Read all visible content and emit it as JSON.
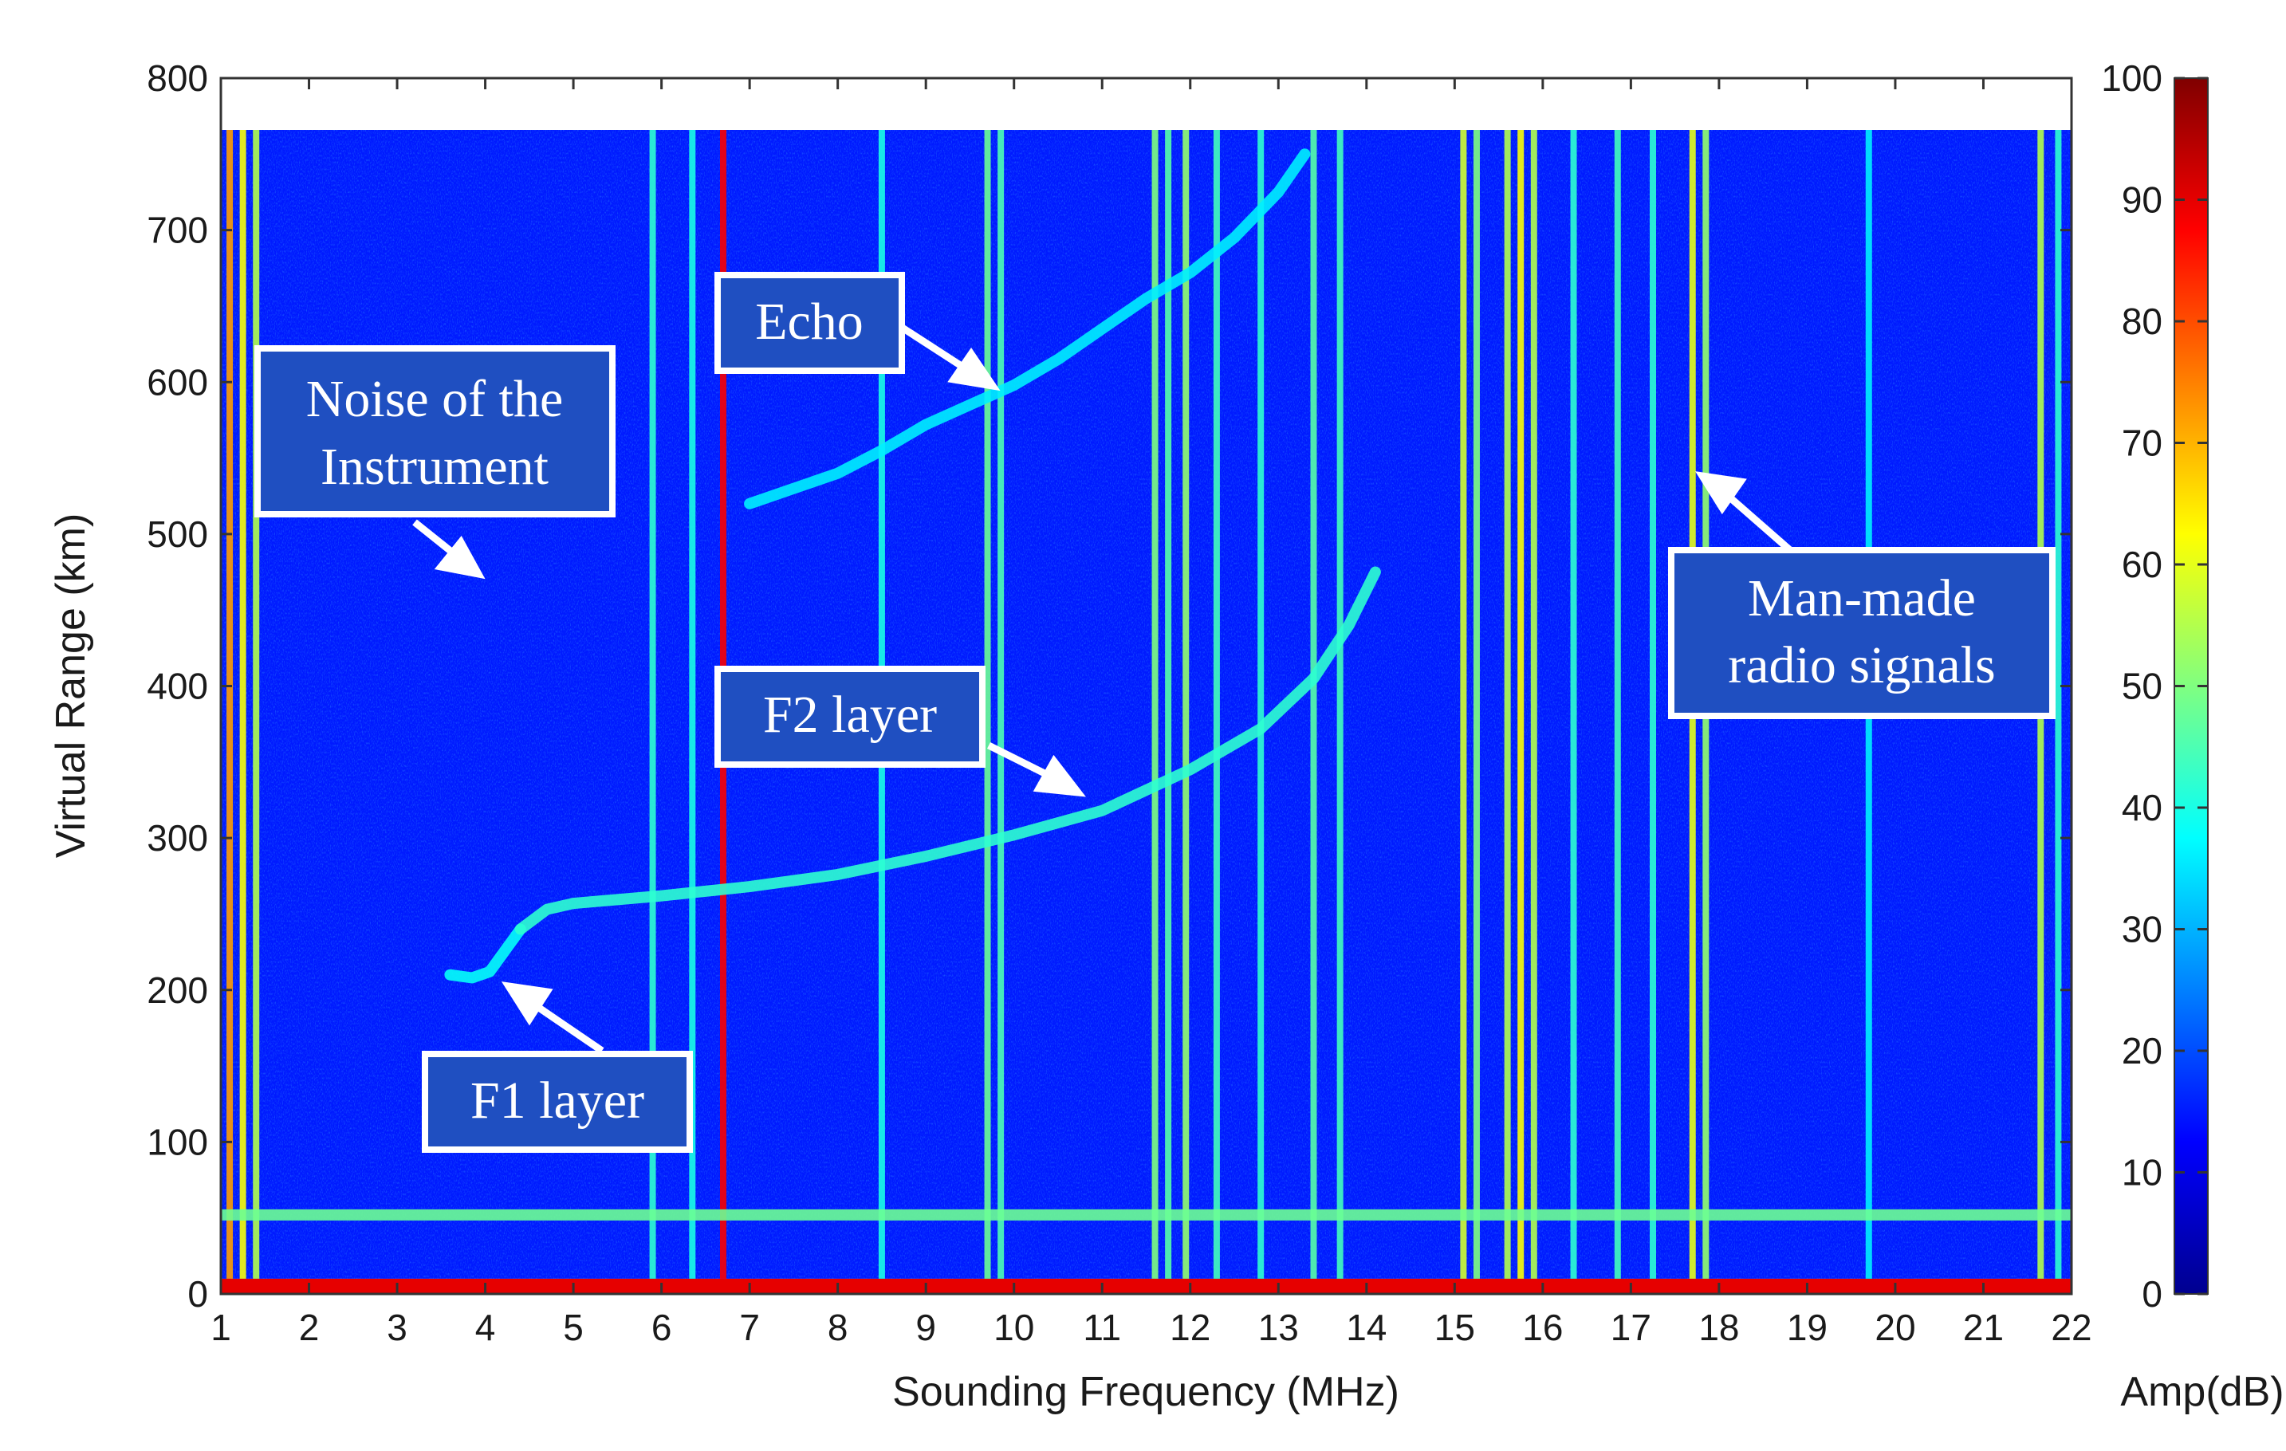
{
  "chart_data": {
    "type": "heatmap",
    "title": "",
    "xlabel": "Sounding Frequency (MHz)",
    "ylabel": "Virtual Range (km)",
    "colorbar_label": "Amp(dB)",
    "xlim": [
      1,
      22
    ],
    "ylim": [
      0,
      800
    ],
    "data_ylim": [
      10,
      768
    ],
    "clim": [
      0,
      100
    ],
    "x_ticks": [
      "1",
      "2",
      "3",
      "4",
      "5",
      "6",
      "7",
      "8",
      "9",
      "10",
      "11",
      "12",
      "13",
      "14",
      "15",
      "16",
      "17",
      "18",
      "19",
      "20",
      "21",
      "22"
    ],
    "y_ticks": [
      "0",
      "100",
      "200",
      "300",
      "400",
      "500",
      "600",
      "700",
      "800"
    ],
    "colorbar_ticks": [
      "0",
      "10",
      "20",
      "30",
      "40",
      "50",
      "60",
      "70",
      "80",
      "90",
      "100"
    ],
    "colormap": [
      "#00008f",
      "#0000ff",
      "#0080ff",
      "#00ffff",
      "#80ff80",
      "#ffff00",
      "#ff8000",
      "#ff0000",
      "#800000"
    ],
    "background_amp_db": 15,
    "traces": [
      {
        "name": "F1 layer",
        "amp_db": 38,
        "points": [
          [
            3.6,
            210
          ],
          [
            3.85,
            208
          ],
          [
            4.05,
            212
          ],
          [
            4.25,
            228
          ],
          [
            4.4,
            240
          ]
        ]
      },
      {
        "name": "F2 layer",
        "amp_db": 42,
        "points": [
          [
            4.4,
            240
          ],
          [
            4.7,
            253
          ],
          [
            5.0,
            257
          ],
          [
            6.0,
            262
          ],
          [
            7.0,
            268
          ],
          [
            8.0,
            276
          ],
          [
            9.0,
            288
          ],
          [
            10.0,
            302
          ],
          [
            11.0,
            318
          ],
          [
            12.0,
            345
          ],
          [
            12.8,
            372
          ],
          [
            13.4,
            405
          ],
          [
            13.8,
            440
          ],
          [
            14.1,
            475
          ]
        ]
      },
      {
        "name": "Echo",
        "amp_db": 36,
        "points": [
          [
            7.0,
            520
          ],
          [
            8.0,
            540
          ],
          [
            8.5,
            555
          ],
          [
            9.0,
            572
          ],
          [
            9.5,
            585
          ],
          [
            10.0,
            598
          ],
          [
            10.5,
            615
          ],
          [
            11.0,
            635
          ],
          [
            11.5,
            655
          ],
          [
            12.0,
            672
          ],
          [
            12.5,
            695
          ],
          [
            13.0,
            725
          ],
          [
            13.3,
            750
          ]
        ]
      },
      {
        "name": "Instrument noise band",
        "amp_db": 48,
        "points": [
          [
            1.0,
            52
          ],
          [
            22.0,
            52
          ]
        ]
      }
    ],
    "interference_lines": [
      {
        "x": 1.1,
        "amp_db": 72
      },
      {
        "x": 1.25,
        "amp_db": 62
      },
      {
        "x": 1.4,
        "amp_db": 55
      },
      {
        "x": 5.9,
        "amp_db": 42
      },
      {
        "x": 6.35,
        "amp_db": 40
      },
      {
        "x": 6.7,
        "amp_db": 88
      },
      {
        "x": 8.5,
        "amp_db": 40
      },
      {
        "x": 9.7,
        "amp_db": 48
      },
      {
        "x": 9.85,
        "amp_db": 45
      },
      {
        "x": 11.6,
        "amp_db": 50
      },
      {
        "x": 11.75,
        "amp_db": 46
      },
      {
        "x": 11.95,
        "amp_db": 52
      },
      {
        "x": 12.3,
        "amp_db": 44
      },
      {
        "x": 12.8,
        "amp_db": 42
      },
      {
        "x": 13.4,
        "amp_db": 46
      },
      {
        "x": 13.7,
        "amp_db": 44
      },
      {
        "x": 15.1,
        "amp_db": 58
      },
      {
        "x": 15.25,
        "amp_db": 50
      },
      {
        "x": 15.6,
        "amp_db": 55
      },
      {
        "x": 15.75,
        "amp_db": 62
      },
      {
        "x": 15.9,
        "amp_db": 55
      },
      {
        "x": 16.35,
        "amp_db": 42
      },
      {
        "x": 16.85,
        "amp_db": 44
      },
      {
        "x": 17.25,
        "amp_db": 42
      },
      {
        "x": 17.7,
        "amp_db": 60
      },
      {
        "x": 17.85,
        "amp_db": 52
      },
      {
        "x": 19.7,
        "amp_db": 36
      },
      {
        "x": 21.65,
        "amp_db": 55
      },
      {
        "x": 21.85,
        "amp_db": 42
      }
    ],
    "bottom_band": {
      "amp_db": 90
    }
  },
  "annotations": [
    {
      "id": "echo",
      "lines": [
        "Echo"
      ]
    },
    {
      "id": "noise",
      "lines": [
        "Noise of the",
        "Instrument"
      ]
    },
    {
      "id": "f2",
      "lines": [
        "F2 layer"
      ]
    },
    {
      "id": "f1",
      "lines": [
        "F1 layer"
      ]
    },
    {
      "id": "radio",
      "lines": [
        "Man-made",
        "radio signals"
      ]
    }
  ]
}
